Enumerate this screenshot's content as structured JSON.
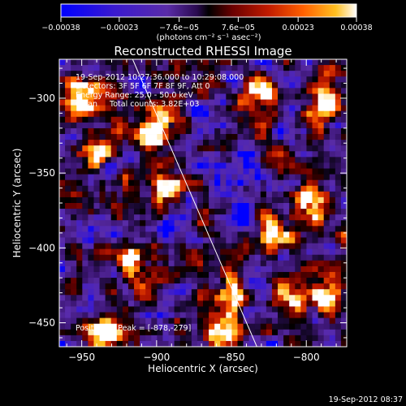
{
  "chart_data": {
    "type": "heatmap",
    "title": "Reconstructed RHESSI Image",
    "xlabel": "Heliocentric X (arcsec)",
    "ylabel": "Heliocentric Y (arcsec)",
    "xlim": [
      -965,
      -773
    ],
    "ylim": [
      -466,
      -274
    ],
    "x_ticks": [
      -950,
      -900,
      -850,
      -800
    ],
    "y_ticks": [
      -300,
      -350,
      -400,
      -450
    ],
    "x_tick_labels": [
      "−950",
      "−900",
      "−850",
      "−800"
    ],
    "y_tick_labels": [
      "−300",
      "−350",
      "−400",
      "−450"
    ],
    "colorbar": {
      "range": [
        -0.00038,
        0.00038
      ],
      "tick_values": [
        -0.00038,
        -0.00023,
        -7.6e-05,
        7.6e-05,
        0.00023,
        0.00038
      ],
      "tick_labels": [
        "−0.00038",
        "−0.00023",
        "−7.6e−05",
        "7.6e−05",
        "0.00023",
        "0.00038"
      ],
      "unit_label": "(photons cm⁻² s⁻¹ asec⁻²)",
      "colors": [
        "#0000ff",
        "#3a1ad0",
        "#5a2ca8",
        "#3a1470",
        "#000000",
        "#6a0000",
        "#c01a00",
        "#ff6000",
        "#ffc020",
        "#ffffff"
      ]
    },
    "limb_line": {
      "x": [
        -916,
        -833
      ],
      "y": [
        -274,
        -466
      ]
    },
    "annotations": [
      "19-Sep-2012 10:27:36.000 to 10:29:08.000",
      "Detectors: 3F 5F 6F 7F 8F 9F, Att 0",
      "Energy Range: 25.0 - 50.0 keV",
      "Clean     Total counts: 3.82E+03"
    ],
    "peak_label": "Position of Peak = [-878,-279]",
    "grid": false
  },
  "timestamp": "19-Sep-2012 08:37"
}
